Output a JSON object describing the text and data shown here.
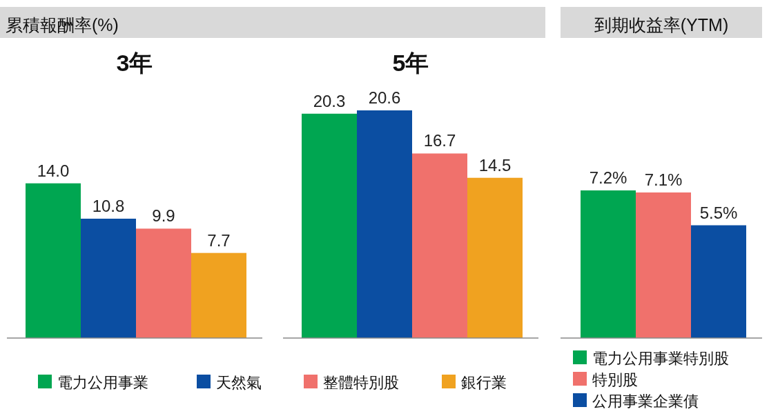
{
  "chart_data": [
    {
      "type": "bar",
      "title": "3年",
      "annotations": [
        "累積報酬率(%)"
      ],
      "categories": [
        null
      ],
      "legend": "bottom",
      "series": [
        {
          "name": "電力公用事業",
          "color": "#00a651",
          "values": [
            14.0
          ],
          "value_labels": [
            "14.0"
          ]
        },
        {
          "name": "天然氣",
          "color": "#0b4ea2",
          "values": [
            10.8
          ],
          "value_labels": [
            "10.8"
          ]
        },
        {
          "name": "整體特別股",
          "color": "#f0716c",
          "values": [
            9.9
          ],
          "value_labels": [
            "9.9"
          ]
        },
        {
          "name": "銀行業",
          "color": "#f0a220",
          "values": [
            7.7
          ],
          "value_labels": [
            "7.7"
          ]
        }
      ]
    },
    {
      "type": "bar",
      "title": "5年",
      "categories": [
        null
      ],
      "legend": "bottom",
      "series": [
        {
          "name": "電力公用事業",
          "color": "#00a651",
          "values": [
            20.3
          ],
          "value_labels": [
            "20.3"
          ]
        },
        {
          "name": "天然氣",
          "color": "#0b4ea2",
          "values": [
            20.6
          ],
          "value_labels": [
            "20.6"
          ]
        },
        {
          "name": "整體特別股",
          "color": "#f0716c",
          "values": [
            16.7
          ],
          "value_labels": [
            "16.7"
          ]
        },
        {
          "name": "銀行業",
          "color": "#f0a220",
          "values": [
            14.5
          ],
          "value_labels": [
            "14.5"
          ]
        }
      ]
    },
    {
      "type": "bar",
      "title": "到期收益率(YTM)",
      "categories": [
        null
      ],
      "legend": "bottom",
      "series": [
        {
          "name": "電力公用事業特別股",
          "color": "#00a651",
          "values": [
            7.2
          ],
          "value_labels": [
            "7.2%"
          ]
        },
        {
          "name": "特別股",
          "color": "#f0716c",
          "values": [
            7.1
          ],
          "value_labels": [
            "7.1%"
          ]
        },
        {
          "name": "公用事業企業債",
          "color": "#0b4ea2",
          "values": [
            5.5
          ],
          "value_labels": [
            "5.5%"
          ]
        }
      ]
    }
  ]
}
